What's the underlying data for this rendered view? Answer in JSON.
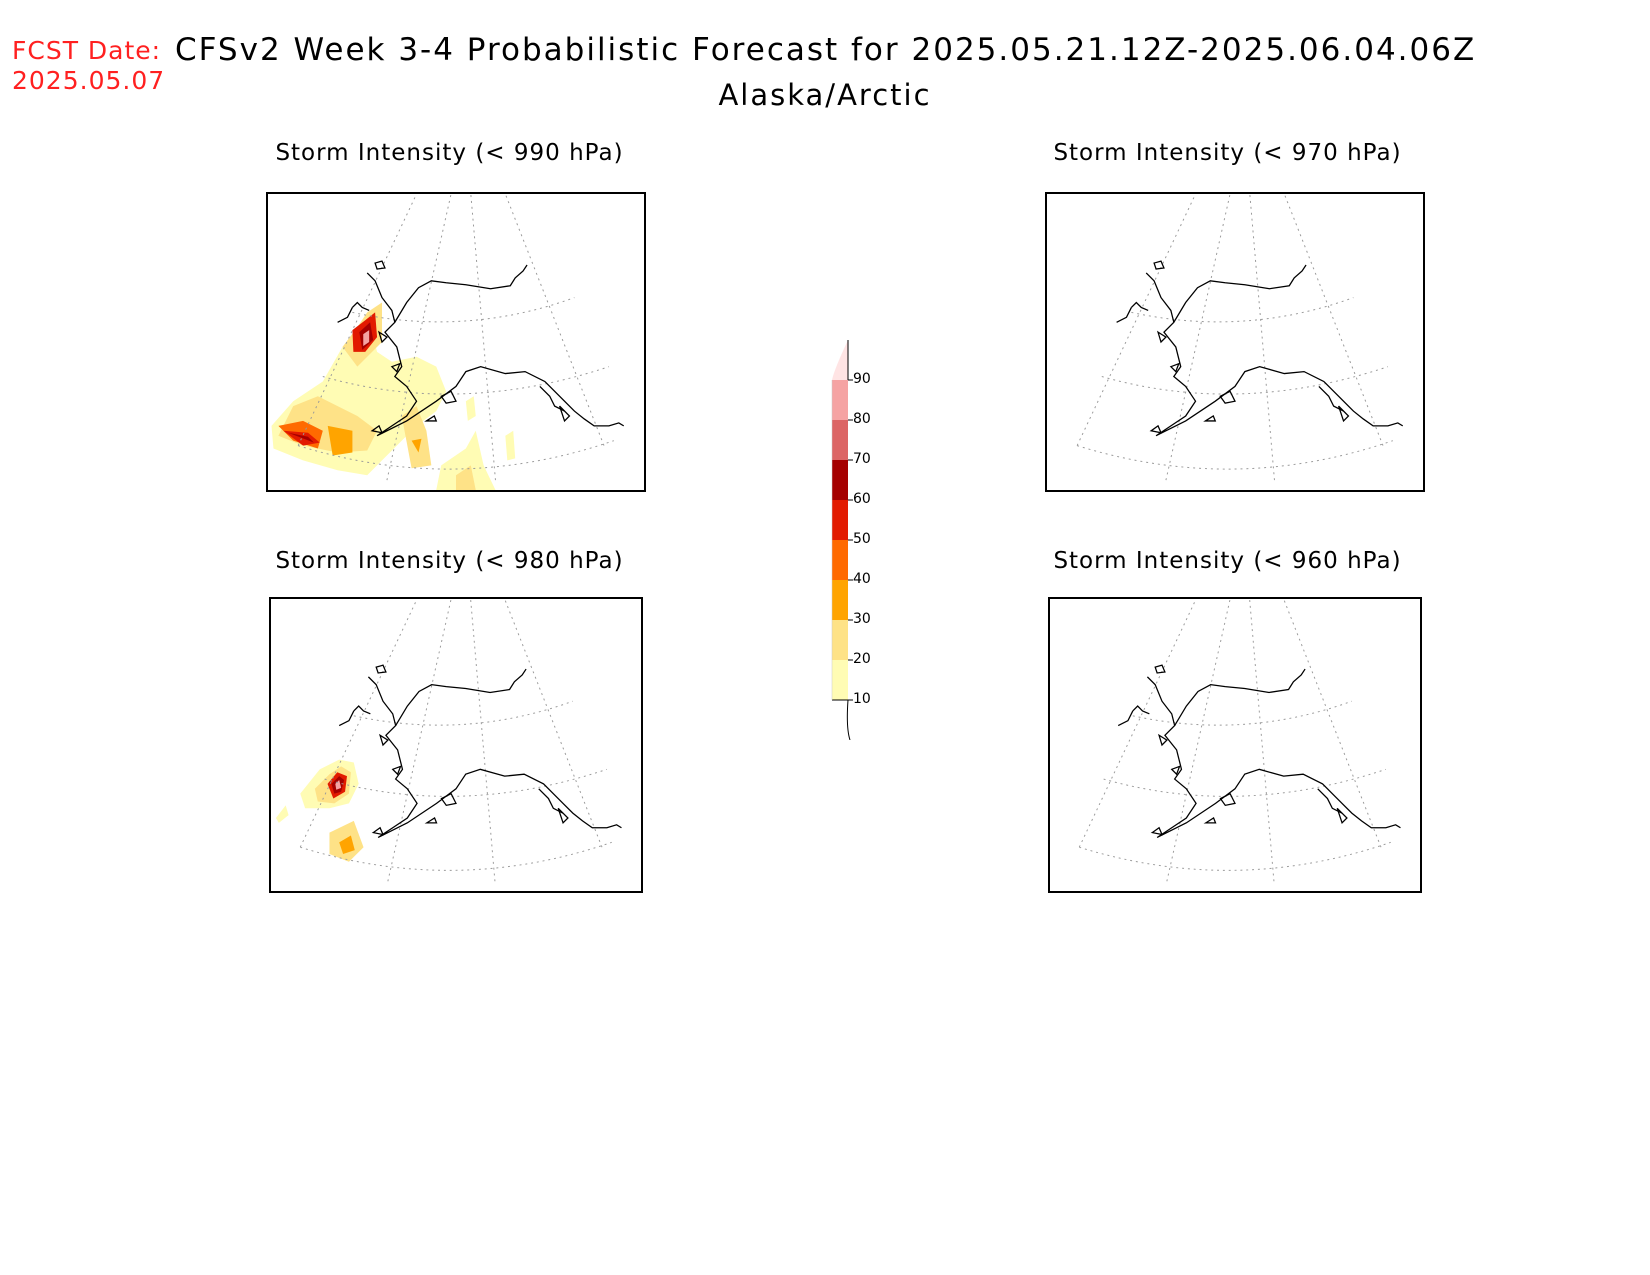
{
  "header": {
    "fcst_label": "FCST Date:",
    "fcst_date": "2025.05.07",
    "title": "CFSv2 Week 3-4 Probabilistic Forecast for 2025.05.21.12Z-2025.06.04.06Z",
    "region": "Alaska/Arctic"
  },
  "panels": [
    {
      "title": "Storm Intensity (< 990 hPa)",
      "position": "top-left"
    },
    {
      "title": "Storm Intensity (< 970 hPa)",
      "position": "top-right"
    },
    {
      "title": "Storm Intensity (< 980 hPa)",
      "position": "bottom-left"
    },
    {
      "title": "Storm Intensity (< 960 hPa)",
      "position": "bottom-right"
    }
  ],
  "colorbar": {
    "levels": [
      "10",
      "20",
      "30",
      "40",
      "50",
      "60",
      "70",
      "80",
      "90"
    ],
    "colors": [
      "#fffcb4",
      "#fee287",
      "#ffa400",
      "#ff6a00",
      "#e21a00",
      "#a50000",
      "#dc6565",
      "#f5a3a3",
      "#ffe4e4"
    ]
  }
}
